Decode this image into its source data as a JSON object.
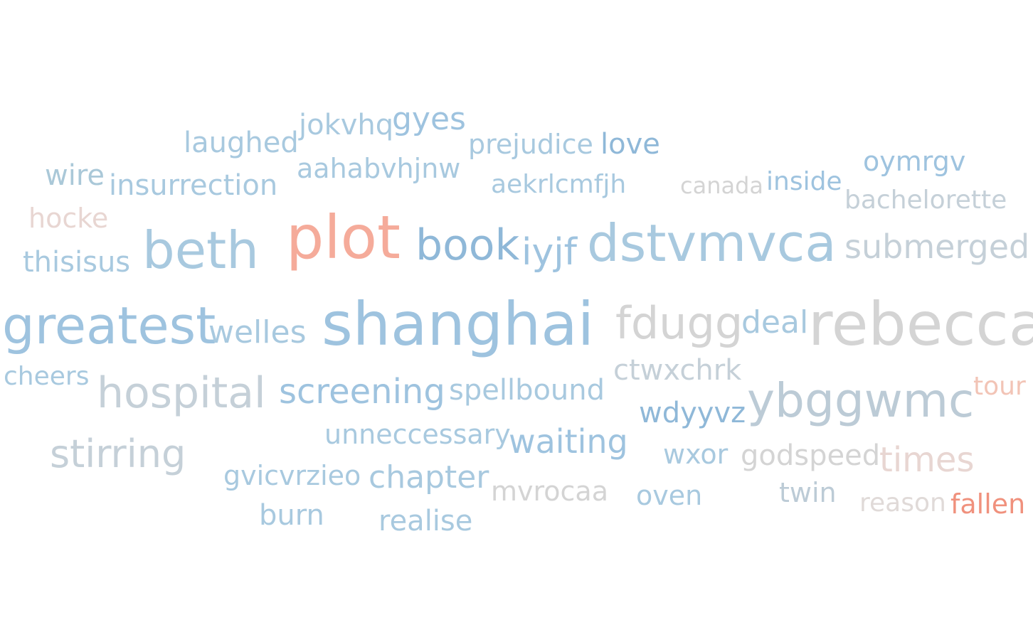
{
  "colors": {
    "blue_light": "#a8c9df",
    "blue": "#9ec3df",
    "blue_dark": "#8fb8d8",
    "gray": "#d4d4d4",
    "gray_blue": "#c5d0d8",
    "rose_light": "#e8d6d2",
    "salmon": "#f5ab9a",
    "salmon_dark": "#f0917d"
  },
  "words": [
    {
      "text": "jokvhq",
      "color": "#a8c9df"
    },
    {
      "text": "gyes",
      "color": "#9ec3df"
    },
    {
      "text": "laughed",
      "color": "#a8c9df"
    },
    {
      "text": "prejudice",
      "color": "#a8c9df"
    },
    {
      "text": "love",
      "color": "#8fb8d8"
    },
    {
      "text": "oymrgv",
      "color": "#9ec3df"
    },
    {
      "text": "wire",
      "color": "#aac8d8"
    },
    {
      "text": "insurrection",
      "color": "#a8c9df"
    },
    {
      "text": "aahabvhjnw",
      "color": "#a8c9df"
    },
    {
      "text": "aekrlcmfjh",
      "color": "#a8c9df"
    },
    {
      "text": "canada",
      "color": "#d4d4d4"
    },
    {
      "text": "inside",
      "color": "#9ec3df"
    },
    {
      "text": "bachelorette",
      "color": "#c5d0d8"
    },
    {
      "text": "hocke",
      "color": "#e8d6d2"
    },
    {
      "text": "beth",
      "color": "#a8c9df"
    },
    {
      "text": "plot",
      "color": "#f5ab9a"
    },
    {
      "text": "book",
      "color": "#8fb8d8"
    },
    {
      "text": "iyjf",
      "color": "#9ec3df"
    },
    {
      "text": "dstvmvca",
      "color": "#a8c9df"
    },
    {
      "text": "submerged",
      "color": "#c5d0d8"
    },
    {
      "text": "thisisus",
      "color": "#a8c9df"
    },
    {
      "text": "greatest",
      "color": "#9ec3df"
    },
    {
      "text": "welles",
      "color": "#a8c9df"
    },
    {
      "text": "shanghai",
      "color": "#9ec3df"
    },
    {
      "text": "fdugg",
      "color": "#d4d4d4"
    },
    {
      "text": "deal",
      "color": "#a8c9df"
    },
    {
      "text": "rebecca",
      "color": "#d4d4d4"
    },
    {
      "text": "cheers",
      "color": "#a8c9df"
    },
    {
      "text": "hospital",
      "color": "#c5d0d8"
    },
    {
      "text": "screening",
      "color": "#9ec3df"
    },
    {
      "text": "spellbound",
      "color": "#a8c9df"
    },
    {
      "text": "ctwxchrk",
      "color": "#c5d0d8"
    },
    {
      "text": "ybggwmc",
      "color": "#bccbd6"
    },
    {
      "text": "tour",
      "color": "#f2c4b6"
    },
    {
      "text": "wdyyvz",
      "color": "#8fb8d8"
    },
    {
      "text": "stirring",
      "color": "#c5d0d8"
    },
    {
      "text": "unneccessary",
      "color": "#a8c9df"
    },
    {
      "text": "waiting",
      "color": "#9ec3df"
    },
    {
      "text": "wxor",
      "color": "#a8c9df"
    },
    {
      "text": "godspeed",
      "color": "#d4d4d4"
    },
    {
      "text": "times",
      "color": "#e8d6d2"
    },
    {
      "text": "gvicvrzieo",
      "color": "#a8c9df"
    },
    {
      "text": "chapter",
      "color": "#a8c9df"
    },
    {
      "text": "mvrocaa",
      "color": "#d4d4d4"
    },
    {
      "text": "oven",
      "color": "#a8c9df"
    },
    {
      "text": "twin",
      "color": "#bccbd6"
    },
    {
      "text": "reason",
      "color": "#e0dad8"
    },
    {
      "text": "fallen",
      "color": "#f0917d"
    },
    {
      "text": "burn",
      "color": "#a8c9df"
    },
    {
      "text": "realise",
      "color": "#a8c9df"
    }
  ]
}
